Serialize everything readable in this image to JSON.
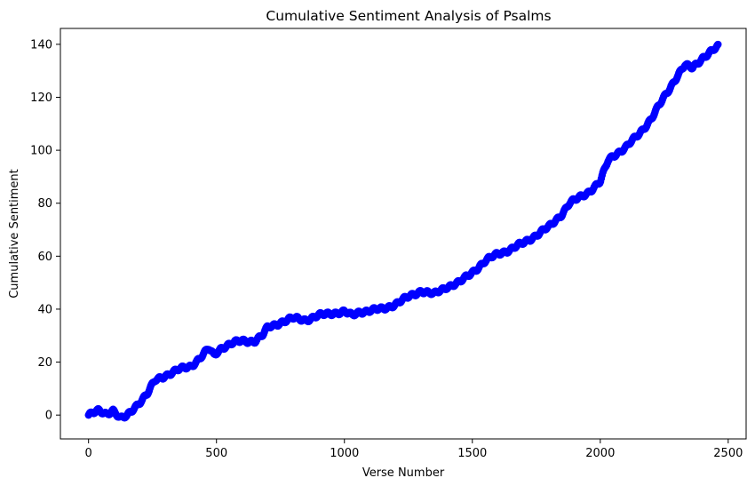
{
  "chart_data": {
    "type": "scatter",
    "title": "Cumulative Sentiment Analysis of Psalms",
    "xlabel": "Verse Number",
    "ylabel": "Cumulative Sentiment",
    "xlim": [
      -110,
      2570
    ],
    "ylim": [
      -9,
      146
    ],
    "x_ticks": [
      0,
      500,
      1000,
      1500,
      2000,
      2500
    ],
    "y_ticks": [
      0,
      20,
      40,
      60,
      80,
      100,
      120,
      140
    ],
    "grid": false,
    "legend": "none",
    "marker_color": "#0000ff",
    "series": [
      {
        "anchor_points": [
          [
            0,
            0
          ],
          [
            40,
            1.5
          ],
          [
            70,
            0.5
          ],
          [
            95,
            2
          ],
          [
            125,
            -1.5
          ],
          [
            150,
            -0.5
          ],
          [
            180,
            3
          ],
          [
            230,
            8
          ],
          [
            260,
            13
          ],
          [
            300,
            15
          ],
          [
            350,
            17
          ],
          [
            400,
            18.5
          ],
          [
            440,
            22
          ],
          [
            470,
            25
          ],
          [
            490,
            22.5
          ],
          [
            520,
            25.5
          ],
          [
            560,
            27
          ],
          [
            600,
            28
          ],
          [
            650,
            28
          ],
          [
            680,
            30
          ],
          [
            700,
            33
          ],
          [
            750,
            35
          ],
          [
            800,
            36.5
          ],
          [
            850,
            36
          ],
          [
            900,
            37.5
          ],
          [
            950,
            38.5
          ],
          [
            1000,
            39
          ],
          [
            1030,
            37.5
          ],
          [
            1060,
            39
          ],
          [
            1100,
            39.5
          ],
          [
            1150,
            40
          ],
          [
            1200,
            42
          ],
          [
            1250,
            44.5
          ],
          [
            1300,
            47
          ],
          [
            1350,
            45.5
          ],
          [
            1400,
            48.5
          ],
          [
            1450,
            50
          ],
          [
            1500,
            54
          ],
          [
            1550,
            58
          ],
          [
            1600,
            61
          ],
          [
            1650,
            62.5
          ],
          [
            1700,
            65
          ],
          [
            1750,
            68
          ],
          [
            1800,
            71
          ],
          [
            1850,
            76
          ],
          [
            1880,
            80
          ],
          [
            1900,
            81
          ],
          [
            1950,
            84
          ],
          [
            2000,
            88
          ],
          [
            2030,
            96
          ],
          [
            2050,
            98
          ],
          [
            2100,
            101
          ],
          [
            2150,
            106
          ],
          [
            2200,
            112
          ],
          [
            2250,
            120
          ],
          [
            2300,
            128
          ],
          [
            2330,
            132
          ],
          [
            2360,
            131
          ],
          [
            2400,
            135
          ],
          [
            2430,
            137
          ],
          [
            2460,
            139
          ]
        ]
      }
    ]
  }
}
